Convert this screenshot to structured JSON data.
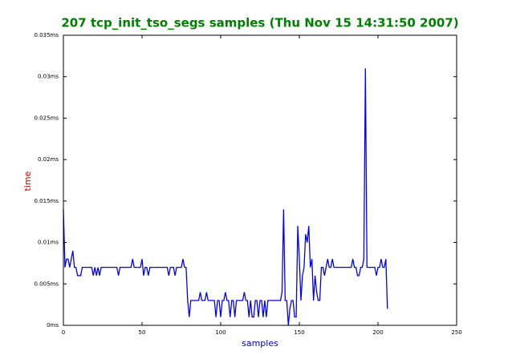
{
  "chart_data": {
    "type": "line",
    "title": "207 tcp_init_tso_segs samples (Thu Nov 15 14:31:50 2007)",
    "xlabel": "samples",
    "ylabel": "time",
    "xlim": [
      0,
      250
    ],
    "xticks": [
      0,
      50,
      100,
      150,
      200,
      250
    ],
    "ylim": [
      0,
      0.035
    ],
    "yticks": [
      {
        "value": 0,
        "label": "0ms"
      },
      {
        "value": 0.005,
        "label": "0.005ms"
      },
      {
        "value": 0.01,
        "label": "0.01ms"
      },
      {
        "value": 0.015,
        "label": "0.015ms"
      },
      {
        "value": 0.02,
        "label": "0.02ms"
      },
      {
        "value": 0.025,
        "label": "0.025ms"
      },
      {
        "value": 0.03,
        "label": "0.03ms"
      },
      {
        "value": 0.035,
        "label": "0.035ms"
      }
    ],
    "x": [
      0,
      1,
      2,
      3,
      4,
      5,
      6,
      7,
      8,
      9,
      10,
      11,
      12,
      13,
      14,
      15,
      16,
      17,
      18,
      19,
      20,
      21,
      22,
      23,
      24,
      25,
      26,
      27,
      28,
      29,
      30,
      31,
      32,
      33,
      34,
      35,
      36,
      37,
      38,
      39,
      40,
      41,
      42,
      43,
      44,
      45,
      46,
      47,
      48,
      49,
      50,
      51,
      52,
      53,
      54,
      55,
      56,
      57,
      58,
      59,
      60,
      61,
      62,
      63,
      64,
      65,
      66,
      67,
      68,
      69,
      70,
      71,
      72,
      73,
      74,
      75,
      76,
      77,
      78,
      79,
      80,
      81,
      82,
      83,
      84,
      85,
      86,
      87,
      88,
      89,
      90,
      91,
      92,
      93,
      94,
      95,
      96,
      97,
      98,
      99,
      100,
      101,
      102,
      103,
      104,
      105,
      106,
      107,
      108,
      109,
      110,
      111,
      112,
      113,
      114,
      115,
      116,
      117,
      118,
      119,
      120,
      121,
      122,
      123,
      124,
      125,
      126,
      127,
      128,
      129,
      130,
      131,
      132,
      133,
      134,
      135,
      136,
      137,
      138,
      139,
      140,
      141,
      142,
      143,
      144,
      145,
      146,
      147,
      148,
      149,
      150,
      151,
      152,
      153,
      154,
      155,
      156,
      157,
      158,
      159,
      160,
      161,
      162,
      163,
      164,
      165,
      166,
      167,
      168,
      169,
      170,
      171,
      172,
      173,
      174,
      175,
      176,
      177,
      178,
      179,
      180,
      181,
      182,
      183,
      184,
      185,
      186,
      187,
      188,
      189,
      190,
      191,
      192,
      193,
      194,
      195,
      196,
      197,
      198,
      199,
      200,
      201,
      202,
      203,
      204,
      205,
      206
    ],
    "series": [
      {
        "name": "samples",
        "color": "#0000ff",
        "values": [
          0.014,
          0.007,
          0.008,
          0.008,
          0.007,
          0.008,
          0.009,
          0.007,
          0.007,
          0.006,
          0.006,
          0.006,
          0.007,
          0.007,
          0.007,
          0.007,
          0.007,
          0.007,
          0.007,
          0.006,
          0.007,
          0.006,
          0.007,
          0.006,
          0.007,
          0.007,
          0.007,
          0.007,
          0.007,
          0.007,
          0.007,
          0.007,
          0.007,
          0.007,
          0.007,
          0.006,
          0.007,
          0.007,
          0.007,
          0.007,
          0.007,
          0.007,
          0.007,
          0.007,
          0.008,
          0.007,
          0.007,
          0.007,
          0.007,
          0.007,
          0.008,
          0.006,
          0.007,
          0.007,
          0.006,
          0.007,
          0.007,
          0.007,
          0.007,
          0.007,
          0.007,
          0.007,
          0.007,
          0.007,
          0.007,
          0.007,
          0.007,
          0.006,
          0.007,
          0.007,
          0.007,
          0.006,
          0.007,
          0.007,
          0.007,
          0.007,
          0.008,
          0.007,
          0.007,
          0.003,
          0.001,
          0.003,
          0.003,
          0.003,
          0.003,
          0.003,
          0.003,
          0.004,
          0.003,
          0.003,
          0.003,
          0.004,
          0.003,
          0.003,
          0.003,
          0.003,
          0.003,
          0.001,
          0.003,
          0.003,
          0.001,
          0.003,
          0.003,
          0.004,
          0.003,
          0.003,
          0.001,
          0.003,
          0.003,
          0.001,
          0.003,
          0.003,
          0.003,
          0.003,
          0.003,
          0.004,
          0.003,
          0.003,
          0.001,
          0.003,
          0.001,
          0.001,
          0.003,
          0.003,
          0.001,
          0.003,
          0.003,
          0.001,
          0.003,
          0.001,
          0.003,
          0.003,
          0.003,
          0.003,
          0.003,
          0.003,
          0.003,
          0.003,
          0.003,
          0.004,
          0.014,
          0.003,
          0.003,
          0,
          0.002,
          0.003,
          0.003,
          0.001,
          0.001,
          0.012,
          0.008,
          0.003,
          0.006,
          0.007,
          0.011,
          0.01,
          0.012,
          0.007,
          0.008,
          0.003,
          0.006,
          0.004,
          0.003,
          0.003,
          0.007,
          0.007,
          0.006,
          0.007,
          0.008,
          0.007,
          0.007,
          0.008,
          0.007,
          0.007,
          0.007,
          0.007,
          0.007,
          0.007,
          0.007,
          0.007,
          0.007,
          0.007,
          0.007,
          0.007,
          0.008,
          0.007,
          0.007,
          0.006,
          0.006,
          0.007,
          0.007,
          0.008,
          0.031,
          0.007,
          0.007,
          0.007,
          0.007,
          0.007,
          0.007,
          0.006,
          0.007,
          0.007,
          0.008,
          0.007,
          0.007,
          0.008,
          0.002
        ]
      }
    ]
  }
}
